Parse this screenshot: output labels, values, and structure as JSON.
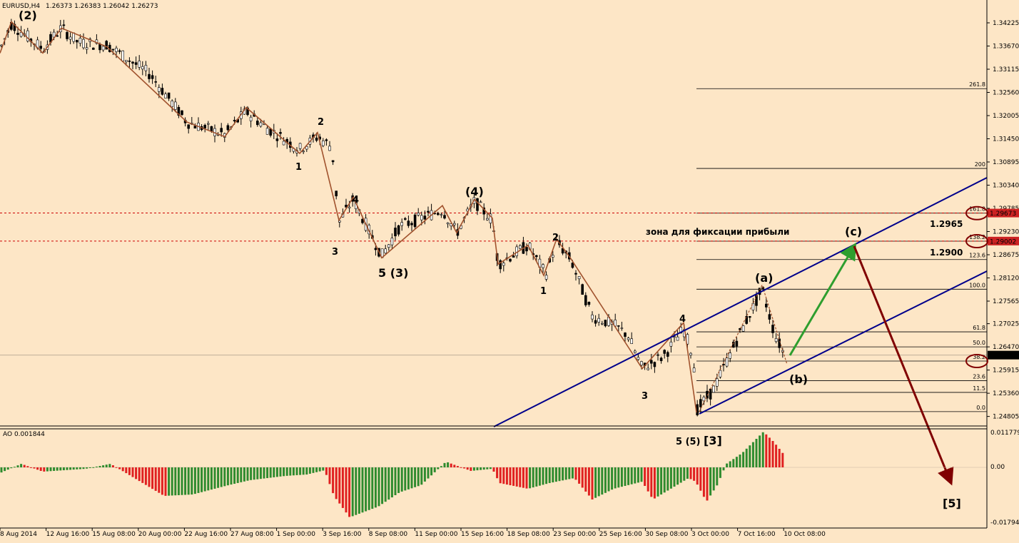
{
  "header": {
    "symbol": "EURUSD,H4",
    "ohlc": "1.26373 1.26383 1.26042 1.26273"
  },
  "ao": {
    "label": "AO 0.001844",
    "axis_labels": [
      "0.011779",
      "0.00",
      "-0.017946"
    ]
  },
  "colors": {
    "background": "#fde6c6",
    "candle": "#000000",
    "wave_line": "#a0522d",
    "channel": "#00008b",
    "support_dashed": "#cc0000",
    "green_arrow": "#2e9e2e",
    "red_arrow": "#800000",
    "ao_up": "#2e8b2e",
    "ao_down": "#e02020",
    "price_badge": "#cc2222"
  },
  "chart_data": {
    "type": "candlestick",
    "title": "EURUSD,H4",
    "price_axis": {
      "ticks": [
        "1.34225",
        "1.33670",
        "1.33115",
        "1.32560",
        "1.32005",
        "1.31450",
        "1.30895",
        "1.30340",
        "1.29785",
        "1.29230",
        "1.28675",
        "1.28120",
        "1.27565",
        "1.27025",
        "1.26470",
        "1.25915",
        "1.25360",
        "1.24805"
      ],
      "range": [
        1.248,
        1.344
      ]
    },
    "time_axis": [
      "8 Aug 2014",
      "12 Aug 16:00",
      "15 Aug 08:00",
      "20 Aug 00:00",
      "22 Aug 16:00",
      "27 Aug 08:00",
      "1 Sep 00:00",
      "3 Sep 16:00",
      "8 Sep 08:00",
      "11 Sep 00:00",
      "15 Sep 16:00",
      "18 Sep 08:00",
      "23 Sep 00:00",
      "25 Sep 16:00",
      "30 Sep 08:00",
      "3 Oct 00:00",
      "7 Oct 16:00",
      "10 Oct 08:00"
    ],
    "current_price": "1.26273",
    "price_badges": [
      "1.29673",
      "1.29002",
      "1.26273"
    ],
    "fibonacci_levels": [
      {
        "label": "261.8",
        "price": 1.3265
      },
      {
        "label": "200",
        "price": 1.3074
      },
      {
        "label": "161.8",
        "price": 1.2967
      },
      {
        "label": "138.2",
        "price": 1.29
      },
      {
        "label": "123.6",
        "price": 1.2856
      },
      {
        "label": "100.0",
        "price": 1.2785
      },
      {
        "label": "61.8",
        "price": 1.2683
      },
      {
        "label": "50.0",
        "price": 1.2647
      },
      {
        "label": "38.2",
        "price": 1.2613
      },
      {
        "label": "23.6",
        "price": 1.2566
      },
      {
        "label": "11.5",
        "price": 1.2538
      },
      {
        "label": "0.0",
        "price": 1.2492
      }
    ],
    "wave_labels": [
      "(2)",
      "1",
      "2",
      "3",
      "4",
      "5 (3)",
      "(4)",
      "1",
      "2",
      "3",
      "4",
      "5 (5)",
      "[3]",
      "(a)",
      "(b)",
      "(c)",
      "[5]"
    ],
    "annotations": {
      "zone_text": "зона для фиксации прибыли",
      "target_upper": "1.2965",
      "target_lower": "1.2900"
    }
  }
}
